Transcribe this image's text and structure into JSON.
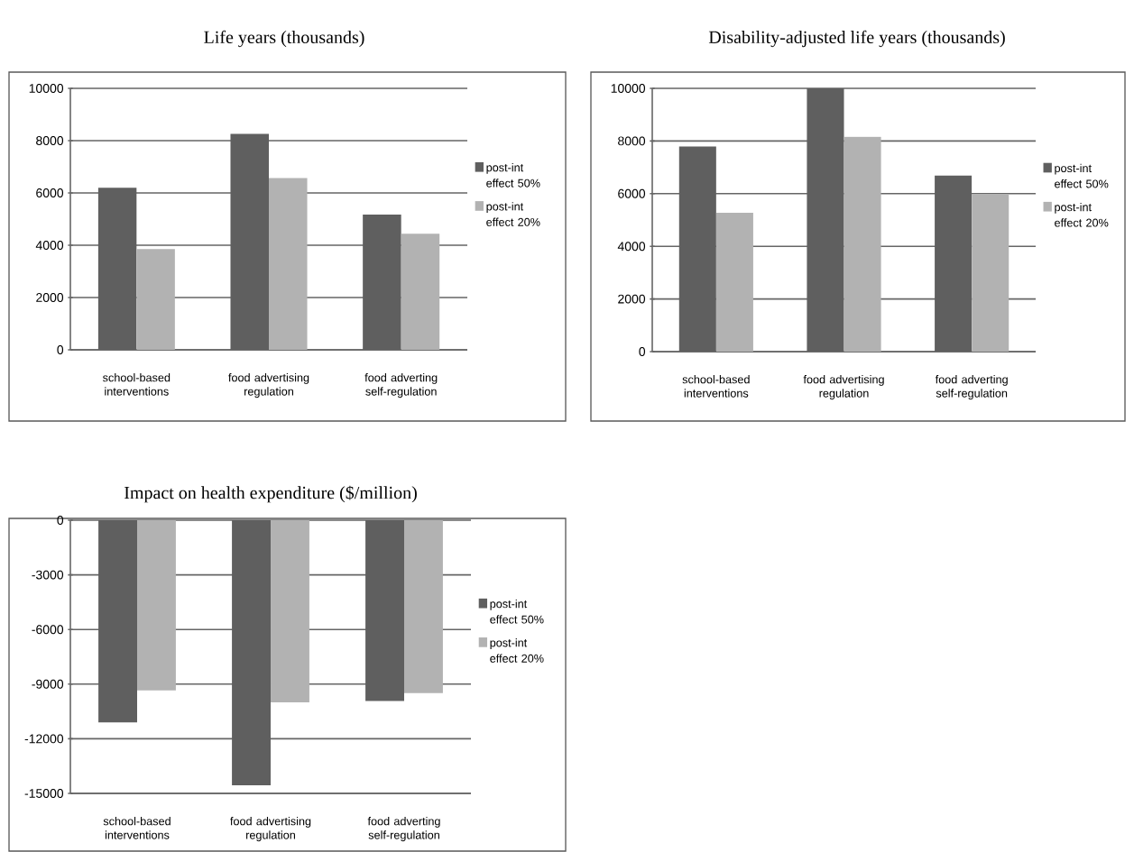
{
  "chart_data": [
    {
      "type": "bar",
      "title": "Life years (thousands)",
      "categories": [
        "school-based interventions",
        "food advertising regulation",
        "food adverting self-regulation"
      ],
      "series": [
        {
          "name": "post-int effect 50%",
          "color": "#5f5f5f",
          "values": [
            6200,
            8260,
            5170
          ]
        },
        {
          "name": "post-int effect 20%",
          "color": "#b2b2b2",
          "values": [
            3850,
            6570,
            4440
          ]
        }
      ],
      "ylim": [
        0,
        10000
      ],
      "yticks": [
        0,
        2000,
        4000,
        6000,
        8000,
        10000
      ],
      "grid": "y",
      "legend": "right"
    },
    {
      "type": "bar",
      "title": "Disability-adjusted life years (thousands)",
      "categories": [
        "school-based interventions",
        "food advertising regulation",
        "food adverting self-regulation"
      ],
      "series": [
        {
          "name": "post-int effect 50%",
          "color": "#5f5f5f",
          "values": [
            7790,
            10000,
            6690
          ]
        },
        {
          "name": "post-int effect 20%",
          "color": "#b2b2b2",
          "values": [
            5270,
            8160,
            5990
          ]
        }
      ],
      "ylim": [
        0,
        10000
      ],
      "yticks": [
        0,
        2000,
        4000,
        6000,
        8000,
        10000
      ],
      "grid": "y",
      "legend": "right"
    },
    {
      "type": "bar",
      "title": "Impact on health expenditure ($/million)",
      "categories": [
        "school-based interventions",
        "food advertising regulation",
        "food adverting self-regulation"
      ],
      "series": [
        {
          "name": "post-int effect 50%",
          "color": "#5f5f5f",
          "values": [
            -11100,
            -14550,
            -9930
          ]
        },
        {
          "name": "post-int effect 20%",
          "color": "#b2b2b2",
          "values": [
            -9350,
            -10000,
            -9490
          ]
        }
      ],
      "ylim": [
        -15000,
        0
      ],
      "yticks": [
        -15000,
        -12000,
        -9000,
        -6000,
        -3000,
        0
      ],
      "grid": "y",
      "legend": "right"
    }
  ]
}
